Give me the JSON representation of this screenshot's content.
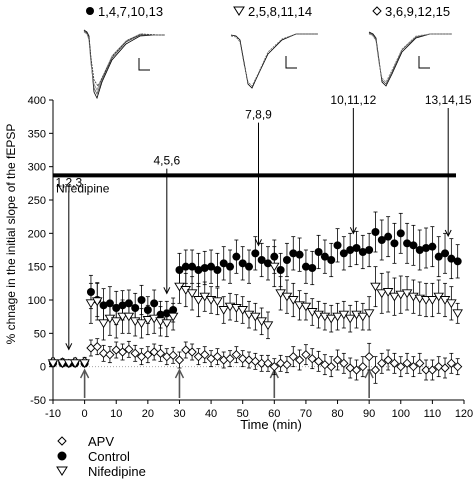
{
  "chart_data": {
    "type": "scatter",
    "xlabel": "Time (min)",
    "ylabel": "% chnage in the initial slope of the fEPSP",
    "xlim": [
      -10,
      120
    ],
    "ylim": [
      -50,
      400
    ],
    "x_ticks": [
      -10,
      0,
      10,
      20,
      30,
      40,
      50,
      60,
      70,
      80,
      90,
      100,
      110,
      120
    ],
    "y_ticks": [
      -50,
      0,
      50,
      100,
      150,
      200,
      250,
      300,
      350,
      400
    ],
    "x_tick_labels": [
      "-10",
      "0",
      "10",
      "20",
      "30",
      "40",
      "50",
      "60",
      "70",
      "80",
      "90",
      "100",
      "110",
      "120"
    ],
    "y_tick_labels": [
      "-50",
      "0",
      "50",
      "100",
      "150",
      "200",
      "250",
      "300",
      "350",
      "400"
    ],
    "legend_position": "bottom-left",
    "series": [
      {
        "name": "APV",
        "marker": "diamond-open",
        "x": [
          -10,
          -7,
          -5,
          -3,
          0,
          2,
          4,
          6,
          8,
          10,
          12,
          14,
          16,
          18,
          20,
          22,
          24,
          26,
          28,
          30,
          32,
          34,
          36,
          38,
          40,
          42,
          44,
          46,
          48,
          50,
          52,
          54,
          56,
          58,
          60,
          62,
          64,
          66,
          68,
          70,
          72,
          74,
          76,
          78,
          80,
          82,
          84,
          86,
          88,
          90,
          92,
          94,
          96,
          98,
          100,
          102,
          104,
          106,
          108,
          110,
          112,
          114,
          116,
          118
        ],
        "y": [
          8,
          7,
          5,
          8,
          8,
          28,
          30,
          20,
          18,
          25,
          22,
          26,
          20,
          15,
          18,
          22,
          20,
          15,
          17,
          10,
          25,
          22,
          15,
          18,
          12,
          15,
          10,
          12,
          18,
          12,
          10,
          8,
          5,
          5,
          0,
          5,
          3,
          15,
          10,
          18,
          12,
          8,
          3,
          0,
          10,
          5,
          -2,
          -5,
          0,
          15,
          -5,
          5,
          10,
          5,
          0,
          5,
          0,
          5,
          -5,
          -5,
          0,
          -2,
          5,
          0
        ],
        "err": [
          5,
          5,
          5,
          5,
          6,
          12,
          12,
          12,
          12,
          12,
          12,
          12,
          12,
          12,
          12,
          12,
          12,
          12,
          12,
          12,
          12,
          12,
          12,
          12,
          12,
          12,
          12,
          12,
          12,
          12,
          12,
          12,
          12,
          12,
          12,
          12,
          12,
          15,
          15,
          15,
          15,
          15,
          15,
          15,
          15,
          15,
          15,
          15,
          15,
          20,
          20,
          15,
          15,
          15,
          15,
          15,
          15,
          15,
          15,
          15,
          15,
          15,
          15,
          12
        ]
      },
      {
        "name": "Control",
        "marker": "circle-filled",
        "x": [
          -10,
          -7,
          -5,
          -3,
          0,
          2,
          4,
          6,
          8,
          10,
          12,
          14,
          16,
          18,
          20,
          22,
          24,
          26,
          28,
          30,
          32,
          34,
          36,
          38,
          40,
          42,
          44,
          46,
          48,
          50,
          52,
          54,
          56,
          58,
          60,
          62,
          64,
          66,
          68,
          70,
          72,
          74,
          76,
          78,
          80,
          82,
          84,
          86,
          88,
          90,
          92,
          94,
          96,
          98,
          100,
          102,
          104,
          106,
          108,
          110,
          112,
          114,
          116,
          118
        ],
        "y": [
          5,
          5,
          5,
          5,
          5,
          112,
          100,
          92,
          95,
          88,
          92,
          95,
          88,
          100,
          85,
          95,
          78,
          80,
          85,
          145,
          150,
          150,
          145,
          148,
          150,
          145,
          155,
          150,
          165,
          155,
          150,
          170,
          160,
          155,
          165,
          145,
          160,
          170,
          168,
          150,
          148,
          172,
          165,
          160,
          182,
          170,
          175,
          178,
          172,
          175,
          202,
          190,
          195,
          185,
          200,
          185,
          182,
          175,
          178,
          180,
          165,
          170,
          162,
          158
        ],
        "err": [
          5,
          5,
          5,
          5,
          5,
          25,
          25,
          25,
          25,
          25,
          22,
          20,
          22,
          22,
          20,
          20,
          20,
          18,
          18,
          25,
          25,
          25,
          25,
          25,
          25,
          25,
          25,
          25,
          25,
          25,
          25,
          25,
          25,
          25,
          25,
          25,
          25,
          25,
          25,
          25,
          25,
          25,
          25,
          25,
          25,
          25,
          25,
          25,
          25,
          25,
          30,
          30,
          30,
          30,
          30,
          30,
          30,
          30,
          30,
          30,
          30,
          30,
          30,
          25
        ]
      },
      {
        "name": "Nifedipine",
        "marker": "triangle-down-open",
        "x": [
          -10,
          -7,
          -5,
          -3,
          0,
          2,
          4,
          6,
          8,
          10,
          12,
          14,
          16,
          18,
          20,
          22,
          24,
          26,
          28,
          30,
          32,
          34,
          36,
          38,
          40,
          42,
          44,
          46,
          48,
          50,
          52,
          54,
          56,
          58,
          60,
          62,
          64,
          66,
          68,
          70,
          72,
          74,
          76,
          78,
          80,
          82,
          84,
          86,
          88,
          90,
          92,
          94,
          96,
          98,
          100,
          102,
          104,
          106,
          108,
          110,
          112,
          114,
          116,
          118
        ],
        "y": [
          5,
          5,
          5,
          5,
          5,
          95,
          98,
          65,
          72,
          68,
          75,
          75,
          68,
          65,
          70,
          72,
          68,
          65,
          75,
          120,
          115,
          110,
          100,
          105,
          100,
          98,
          85,
          90,
          88,
          85,
          78,
          75,
          68,
          62,
          150,
          110,
          105,
          100,
          92,
          90,
          82,
          78,
          75,
          72,
          75,
          78,
          72,
          78,
          75,
          80,
          120,
          110,
          112,
          105,
          108,
          110,
          105,
          102,
          100,
          100,
          105,
          100,
          95,
          80
        ],
        "err": [
          5,
          5,
          5,
          5,
          5,
          30,
          28,
          25,
          25,
          25,
          25,
          25,
          22,
          22,
          22,
          22,
          22,
          20,
          20,
          25,
          25,
          25,
          25,
          22,
          20,
          20,
          20,
          20,
          20,
          20,
          20,
          20,
          20,
          20,
          30,
          25,
          25,
          25,
          22,
          20,
          20,
          20,
          20,
          20,
          20,
          20,
          20,
          20,
          20,
          25,
          30,
          30,
          30,
          28,
          28,
          25,
          25,
          25,
          25,
          25,
          25,
          25,
          25,
          15
        ]
      }
    ],
    "drug_bar": {
      "label": "Nifedipine",
      "x_start": -10,
      "x_end": 120,
      "y": 287
    },
    "trace_labels": [
      {
        "text": "1,2,3",
        "x": -5
      },
      {
        "text": "4,5,6",
        "x": 26
      },
      {
        "text": "7,8,9",
        "x": 55
      },
      {
        "text": "10,11,12",
        "x": 85
      },
      {
        "text": "13,14,15",
        "x": 115
      }
    ],
    "stim_arrows_x": [
      0,
      30,
      60,
      90
    ],
    "insets": [
      {
        "legend": "1,4,7,10,13",
        "marker": "circle-filled"
      },
      {
        "legend": "2,5,8,11,14",
        "marker": "triangle-down-open"
      },
      {
        "legend": "3,6,9,12,15",
        "marker": "diamond-open"
      }
    ]
  }
}
